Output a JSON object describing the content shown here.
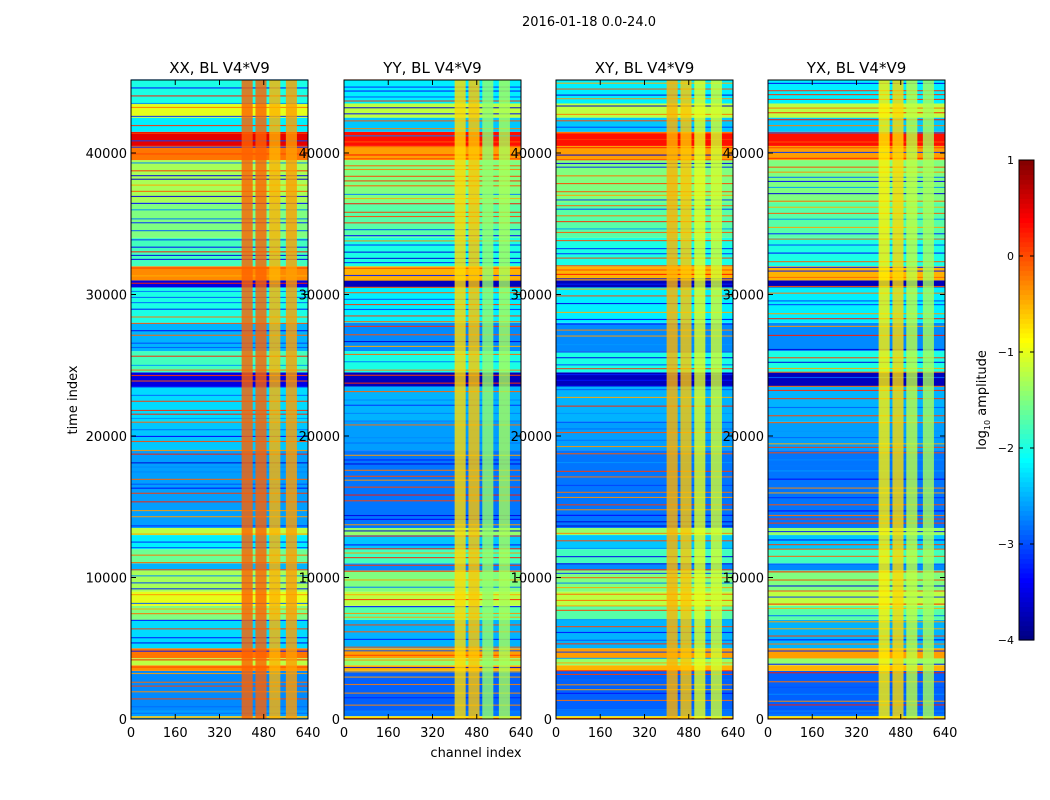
{
  "chart_data": {
    "type": "heatmap",
    "title": "2016-01-18 0.0-24.0",
    "xlabel": "channel index",
    "ylabel": "time index",
    "xlim": [
      0,
      640
    ],
    "ylim": [
      0,
      45160
    ],
    "xticks": [
      "0",
      "160",
      "320",
      "480",
      "640"
    ],
    "xtick_values": [
      0,
      160,
      320,
      480,
      640
    ],
    "yticks": [
      "0",
      "10000",
      "20000",
      "30000",
      "40000"
    ],
    "ytick_values": [
      0,
      10000,
      20000,
      30000,
      40000
    ],
    "colorbar": {
      "label_main": "log",
      "label_sub": "10",
      "label_tail": " amplitude",
      "range": [
        -4,
        1
      ],
      "ticks": [
        "1",
        "0",
        "−1",
        "−2",
        "−3",
        "−4"
      ],
      "tick_values": [
        1,
        0,
        -1,
        -2,
        -3,
        -4
      ],
      "colormap": "jet"
    },
    "time_bands": [
      [
        0,
        200,
        -0.6
      ],
      [
        200,
        600,
        -2.6
      ],
      [
        600,
        3400,
        -2.7
      ],
      [
        3400,
        3800,
        -0.3
      ],
      [
        3800,
        4300,
        -1.2
      ],
      [
        4300,
        5000,
        -0.2
      ],
      [
        5000,
        7000,
        -2.3
      ],
      [
        7000,
        8000,
        -1.5
      ],
      [
        8000,
        9000,
        -1.0
      ],
      [
        9000,
        10500,
        -1.3
      ],
      [
        10500,
        11000,
        -2.5
      ],
      [
        11000,
        12000,
        -1.6
      ],
      [
        12000,
        13000,
        -2.2
      ],
      [
        13000,
        13500,
        -1.2
      ],
      [
        13500,
        19000,
        -2.6
      ],
      [
        19000,
        21000,
        -2.4
      ],
      [
        21000,
        23500,
        -2.3
      ],
      [
        23500,
        24500,
        -3.5
      ],
      [
        24500,
        26000,
        -1.8
      ],
      [
        26000,
        28000,
        -2.5
      ],
      [
        28000,
        30500,
        -2.0
      ],
      [
        30500,
        31000,
        -3.5
      ],
      [
        31000,
        32000,
        -0.3
      ],
      [
        32000,
        34000,
        -1.8
      ],
      [
        34000,
        36500,
        -1.5
      ],
      [
        36500,
        39500,
        -1.3
      ],
      [
        39500,
        40500,
        -0.2
      ],
      [
        40500,
        41500,
        0.5
      ],
      [
        41500,
        42500,
        -2.2
      ],
      [
        42500,
        43500,
        -1.0
      ],
      [
        43500,
        45160,
        -2.0
      ]
    ],
    "panels": [
      {
        "title": "XX, BL V4*V9",
        "channel_bands": [
          [
            400,
            440,
            -0.1
          ],
          [
            450,
            490,
            -0.1
          ],
          [
            500,
            540,
            -0.5
          ],
          [
            560,
            600,
            -0.4
          ]
        ]
      },
      {
        "title": "YY, BL V4*V9",
        "channel_bands": [
          [
            400,
            440,
            -0.7
          ],
          [
            450,
            490,
            -0.6
          ],
          [
            500,
            540,
            -1.4
          ],
          [
            560,
            600,
            -1.3
          ]
        ]
      },
      {
        "title": "XY, BL V4*V9",
        "channel_bands": [
          [
            400,
            440,
            -0.5
          ],
          [
            450,
            490,
            -0.6
          ],
          [
            500,
            540,
            -1.0
          ],
          [
            560,
            600,
            -1.1
          ]
        ]
      },
      {
        "title": "YX, BL V4*V9",
        "channel_bands": [
          [
            400,
            440,
            -0.8
          ],
          [
            450,
            490,
            -0.7
          ],
          [
            500,
            540,
            -1.2
          ],
          [
            560,
            600,
            -1.3
          ]
        ]
      }
    ]
  }
}
